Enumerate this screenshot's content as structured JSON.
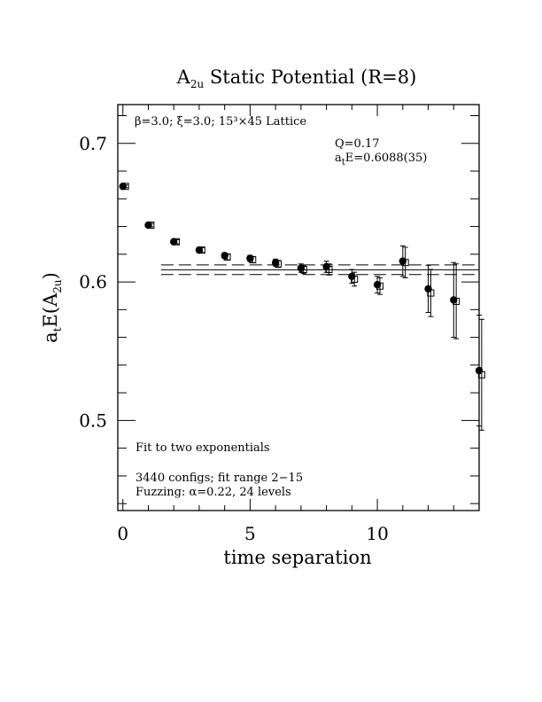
{
  "chart_data": {
    "type": "scatter",
    "title": {
      "main": "A",
      "sub": "2u",
      "rest": " Static Potential (R=8)"
    },
    "xlabel": "time separation",
    "ylabel": {
      "main": "a",
      "sub1": "t",
      "mid": "E(A",
      "sub2": "2u",
      "end": ")"
    },
    "xlim": [
      -0.2,
      14.0
    ],
    "ylim": [
      0.435,
      0.728
    ],
    "xticks": [
      {
        "v": 0,
        "label": "0"
      },
      {
        "v": 5,
        "label": "5"
      },
      {
        "v": 10,
        "label": "10"
      }
    ],
    "yticks": [
      {
        "v": 0.5,
        "label": "0.5"
      },
      {
        "v": 0.6,
        "label": "0.6"
      },
      {
        "v": 0.7,
        "label": "0.7"
      }
    ],
    "xminor_step": 1,
    "yminor_step": 0.02,
    "annotations": {
      "lattice": "β=3.0; ξ=3.0; 15³×45 Lattice",
      "q": "Q=0.17",
      "energy": {
        "main": "a",
        "sub": "t",
        "rest": "E=0.6088(35)"
      },
      "fit": "Fit to two exponentials",
      "configs": "3440 configs; fit range 2−15",
      "fuzzing": "Fuzzing: α=0.22, 24 levels"
    },
    "fit": {
      "center": 0.6088,
      "error": 0.0035,
      "x_range": [
        1.5,
        14.0
      ]
    },
    "series": [
      {
        "marker": "filled-circle",
        "points": [
          {
            "x": 0,
            "y": 0.669,
            "err": 0.001
          },
          {
            "x": 1,
            "y": 0.641,
            "err": 0.0012
          },
          {
            "x": 2,
            "y": 0.629,
            "err": 0.0015
          },
          {
            "x": 3,
            "y": 0.623,
            "err": 0.0018
          },
          {
            "x": 4,
            "y": 0.619,
            "err": 0.002
          },
          {
            "x": 5,
            "y": 0.617,
            "err": 0.0022
          },
          {
            "x": 6,
            "y": 0.614,
            "err": 0.0025
          },
          {
            "x": 7,
            "y": 0.61,
            "err": 0.003
          },
          {
            "x": 8,
            "y": 0.611,
            "err": 0.004
          },
          {
            "x": 9,
            "y": 0.604,
            "err": 0.005
          },
          {
            "x": 10,
            "y": 0.598,
            "err": 0.006
          },
          {
            "x": 11,
            "y": 0.615,
            "err": 0.011
          },
          {
            "x": 12,
            "y": 0.595,
            "err": 0.017
          },
          {
            "x": 13,
            "y": 0.587,
            "err": 0.027
          },
          {
            "x": 14,
            "y": 0.536,
            "err": 0.04
          }
        ]
      },
      {
        "marker": "open-square",
        "points": [
          {
            "x": 0.1,
            "y": 0.669,
            "err": 0.001
          },
          {
            "x": 1.1,
            "y": 0.641,
            "err": 0.0012
          },
          {
            "x": 2.1,
            "y": 0.629,
            "err": 0.0015
          },
          {
            "x": 3.1,
            "y": 0.623,
            "err": 0.0018
          },
          {
            "x": 4.1,
            "y": 0.618,
            "err": 0.002
          },
          {
            "x": 5.1,
            "y": 0.616,
            "err": 0.0022
          },
          {
            "x": 6.1,
            "y": 0.613,
            "err": 0.0025
          },
          {
            "x": 7.1,
            "y": 0.609,
            "err": 0.003
          },
          {
            "x": 8.1,
            "y": 0.609,
            "err": 0.004
          },
          {
            "x": 9.1,
            "y": 0.602,
            "err": 0.005
          },
          {
            "x": 10.1,
            "y": 0.597,
            "err": 0.006
          },
          {
            "x": 11.1,
            "y": 0.614,
            "err": 0.011
          },
          {
            "x": 12.1,
            "y": 0.592,
            "err": 0.017
          },
          {
            "x": 13.1,
            "y": 0.586,
            "err": 0.027
          },
          {
            "x": 14.1,
            "y": 0.533,
            "err": 0.04
          }
        ]
      }
    ]
  }
}
